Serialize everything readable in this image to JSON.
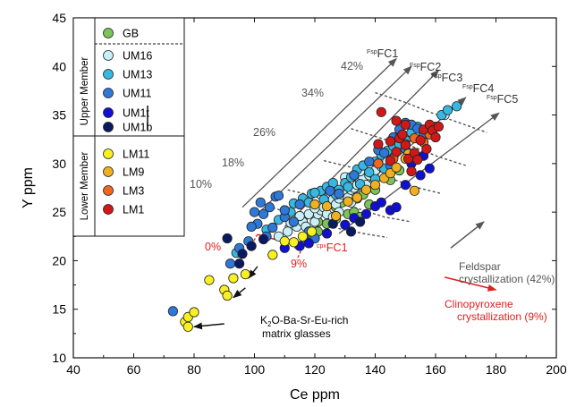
{
  "chart_data": {
    "type": "scatter",
    "xlabel": "Ce ppm",
    "ylabel": "Y ppm",
    "xlim": [
      40,
      200
    ],
    "ylim": [
      10,
      45
    ],
    "xticks": [
      "40",
      "60",
      "80",
      "100",
      "120",
      "140",
      "160",
      "180",
      "200"
    ],
    "yticks": [
      "10",
      "15",
      "20",
      "25",
      "30",
      "35",
      "40",
      "45"
    ],
    "grid": false,
    "legend": {
      "placement": "top-left",
      "group_upper": "Upper Member",
      "group_lower": "Lower Member",
      "entries": [
        {
          "label": "GB",
          "color": "#7cc45a"
        },
        {
          "label": "UM16",
          "color": "#c8f0f8"
        },
        {
          "label": "UM13",
          "color": "#38b8e0"
        },
        {
          "label": "UM11",
          "color": "#2e78d8"
        },
        {
          "label": "UM1t",
          "color": "#1010d0"
        },
        {
          "label": "UM1b",
          "color": "#0a1a60"
        },
        {
          "label": "LM11",
          "color": "#f8f020"
        },
        {
          "label": "LM9",
          "color": "#f0b020"
        },
        {
          "label": "LM3",
          "color": "#f06820"
        },
        {
          "label": "LM1",
          "color": "#d01818"
        }
      ]
    },
    "fsp_vectors": {
      "color": "#555555",
      "labels": [
        "FspFC1",
        "FspFC2",
        "FspFC3",
        "FspFC4",
        "FspFC5"
      ],
      "starts": [
        [
          96,
          25.5
        ],
        [
          101,
          24.8
        ],
        [
          110,
          23.5
        ],
        [
          119,
          23.0
        ],
        [
          128,
          22.8
        ]
      ],
      "ends": [
        [
          147,
          40.8
        ],
        [
          152,
          40.0
        ],
        [
          161,
          39.6
        ],
        [
          170,
          36.8
        ],
        [
          181,
          35.2
        ]
      ],
      "percent_labels": [
        "10%",
        "18%",
        "26%",
        "34%",
        "42%"
      ],
      "percent_lines": [
        [
          [
            103,
            25.8
          ],
          [
            120,
            24.0
          ],
          [
            128,
            23.3
          ],
          [
            136,
            22.8
          ],
          [
            144,
            22.4
          ]
        ],
        [
          [
            111,
            27.3
          ],
          [
            126,
            26.2
          ],
          [
            135,
            25.3
          ],
          [
            143,
            24.5
          ],
          [
            152,
            24.0
          ]
        ],
        [
          [
            123,
            30.3
          ],
          [
            135,
            29.4
          ],
          [
            144,
            28.6
          ],
          [
            153,
            27.6
          ],
          [
            162,
            26.9
          ]
        ],
        [
          [
            132,
            33.6
          ],
          [
            143,
            32.5
          ],
          [
            152,
            31.8
          ],
          [
            161,
            30.7
          ],
          [
            170,
            29.8
          ]
        ],
        [
          [
            140,
            37.3
          ],
          [
            150,
            36.3
          ],
          [
            158,
            35.3
          ],
          [
            167,
            34.3
          ],
          [
            177,
            33.2
          ]
        ]
      ]
    },
    "cpx_vector": {
      "color": "#e02020",
      "label": "cpxFC1",
      "start": [
        101,
        22.7
      ],
      "end": [
        116,
        21.4
      ],
      "pct_start_label": "0%",
      "pct_end_label": "9%"
    },
    "annotations": {
      "matrix_text_prefix": "K",
      "matrix_text_sub": "2",
      "matrix_text_suffix": "O-Ba-Sr-Eu-rich",
      "matrix_text_line2": "matrix glasses",
      "feldspar_line1": "Feldspar",
      "feldspar_line2": "crystallization (42%)",
      "feldspar_arrow": [
        [
          165,
          21.3
        ],
        [
          176,
          24.0
        ]
      ],
      "cpx_line1": "Clinopyroxene",
      "cpx_line2": "crystallization (9%)",
      "cpx_arrow": [
        [
          163,
          18.3
        ],
        [
          180,
          17.0
        ]
      ],
      "matrix_arrows": [
        [
          [
            90,
            13.5
          ],
          [
            80,
            13.2
          ]
        ],
        [
          [
            97,
            17.2
          ],
          [
            93,
            16.2
          ]
        ],
        [
          [
            101,
            19.4
          ],
          [
            98,
            18.2
          ]
        ]
      ]
    },
    "series": [
      {
        "name": "GB",
        "color": "#7cc45a",
        "points": [
          [
            118,
            22.5
          ],
          [
            121,
            23.0
          ],
          [
            124,
            23.8
          ],
          [
            127,
            24.3
          ],
          [
            131,
            24.8
          ],
          [
            133,
            25.0
          ],
          [
            135,
            24.5
          ],
          [
            138,
            25.8
          ],
          [
            121,
            24.0
          ],
          [
            127,
            25.5
          ],
          [
            134,
            26.4
          ],
          [
            140,
            27.3
          ],
          [
            145,
            28.3
          ],
          [
            148,
            29.3
          ],
          [
            129,
            26.0
          ],
          [
            136,
            26.8
          ]
        ]
      },
      {
        "name": "UM16",
        "color": "#c8f0f8",
        "points": [
          [
            108,
            22.5
          ],
          [
            111,
            23.0
          ],
          [
            114,
            23.5
          ],
          [
            116,
            24.0
          ],
          [
            117,
            23.5
          ],
          [
            118,
            23.0
          ],
          [
            120,
            24.0
          ],
          [
            121,
            24.8
          ],
          [
            122,
            25.2
          ],
          [
            123,
            25.5
          ],
          [
            124,
            24.8
          ],
          [
            125,
            25.9
          ],
          [
            126,
            26.3
          ],
          [
            127,
            25.8
          ],
          [
            128,
            26.4
          ],
          [
            129,
            26.8
          ],
          [
            130,
            27.0
          ],
          [
            131,
            26.5
          ],
          [
            132,
            27.3
          ],
          [
            133,
            27.5
          ],
          [
            134,
            27.8
          ],
          [
            135,
            28.2
          ],
          [
            136,
            28.5
          ],
          [
            137,
            27.8
          ],
          [
            138,
            28.8
          ],
          [
            139,
            29.0
          ],
          [
            140,
            29.3
          ],
          [
            142,
            29.7
          ],
          [
            144,
            30.2
          ],
          [
            146,
            30.7
          ],
          [
            118,
            24.8
          ],
          [
            120,
            25.4
          ],
          [
            112,
            23.9
          ],
          [
            115,
            24.6
          ],
          [
            118,
            26.0
          ],
          [
            122,
            26.8
          ],
          [
            125,
            27.2
          ],
          [
            130,
            28.6
          ],
          [
            135,
            29.2
          ],
          [
            128,
            25.0
          ],
          [
            126,
            24.5
          ],
          [
            132,
            26.0
          ],
          [
            163,
            35.0
          ]
        ]
      },
      {
        "name": "UM13",
        "color": "#38b8e0",
        "points": [
          [
            94,
            20.8
          ],
          [
            104,
            23.2
          ],
          [
            108,
            24.2
          ],
          [
            112,
            25.0
          ],
          [
            113,
            25.9
          ],
          [
            116,
            26.4
          ],
          [
            118,
            26.0
          ],
          [
            119,
            26.9
          ],
          [
            122,
            27.2
          ],
          [
            124,
            27.6
          ],
          [
            126,
            28.0
          ],
          [
            128,
            27.3
          ],
          [
            130,
            28.0
          ],
          [
            132,
            28.6
          ],
          [
            134,
            29.4
          ],
          [
            136,
            29.8
          ],
          [
            138,
            29.1
          ],
          [
            140,
            30.2
          ],
          [
            142,
            30.9
          ],
          [
            144,
            31.3
          ],
          [
            146,
            31.8
          ],
          [
            148,
            32.0
          ],
          [
            150,
            32.4
          ],
          [
            152,
            33.2
          ],
          [
            154,
            33.8
          ],
          [
            140,
            28.4
          ],
          [
            143,
            29.5
          ],
          [
            120,
            27.0
          ],
          [
            123,
            26.3
          ],
          [
            127,
            26.8
          ],
          [
            131,
            27.6
          ],
          [
            135,
            27.9
          ],
          [
            162,
            35.0
          ],
          [
            164,
            35.5
          ],
          [
            167,
            35.9
          ],
          [
            158,
            33.0
          ],
          [
            152,
            31.0
          ],
          [
            146,
            29.5
          ]
        ]
      },
      {
        "name": "UM11",
        "color": "#2e78d8",
        "points": [
          [
            73,
            14.8
          ],
          [
            92,
            19.7
          ],
          [
            95,
            21.3
          ],
          [
            98,
            22.0
          ],
          [
            101,
            23.8
          ],
          [
            103,
            24.8
          ],
          [
            105,
            25.5
          ],
          [
            107,
            26.6
          ],
          [
            104,
            22.5
          ],
          [
            106,
            23.4
          ],
          [
            110,
            24.5
          ],
          [
            113,
            24.0
          ],
          [
            117,
            22.0
          ],
          [
            118,
            23.0
          ],
          [
            120,
            22.3
          ],
          [
            115,
            25.8
          ],
          [
            108,
            26.7
          ],
          [
            110,
            25.2
          ],
          [
            125,
            27.2
          ],
          [
            128,
            26.9
          ],
          [
            133,
            28.8
          ],
          [
            138,
            30.2
          ],
          [
            141,
            31.4
          ],
          [
            143,
            31.1
          ],
          [
            146,
            32.7
          ],
          [
            148,
            33.5
          ],
          [
            150,
            34.2
          ],
          [
            152,
            34.0
          ],
          [
            154,
            33.6
          ],
          [
            156,
            33.0
          ],
          [
            158,
            33.2
          ],
          [
            160,
            33.8
          ],
          [
            150,
            31.5
          ],
          [
            145,
            29.8
          ],
          [
            100,
            25.0
          ],
          [
            99,
            23.5
          ],
          [
            102,
            26.0
          ]
        ]
      },
      {
        "name": "UM1t",
        "color": "#1010d0",
        "points": [
          [
            110,
            21.3
          ],
          [
            115,
            21.5
          ],
          [
            118,
            21.8
          ],
          [
            124,
            22.8
          ],
          [
            130,
            23.7
          ],
          [
            133,
            24.4
          ],
          [
            137,
            24.8
          ],
          [
            140,
            25.6
          ],
          [
            145,
            25.2
          ],
          [
            147,
            25.5
          ],
          [
            142,
            26.0
          ],
          [
            150,
            27.8
          ],
          [
            155,
            28.8
          ],
          [
            158,
            29.5
          ],
          [
            152,
            30.0
          ],
          [
            156,
            30.8
          ]
        ]
      },
      {
        "name": "UM1b",
        "color": "#0a1a60",
        "points": [
          [
            91,
            22.3
          ],
          [
            96,
            20.7
          ],
          [
            95,
            19.7
          ],
          [
            99,
            21.5
          ],
          [
            103,
            22.2
          ],
          [
            126,
            23.8
          ],
          [
            132,
            23.0
          ],
          [
            135,
            24.0
          ]
        ]
      },
      {
        "name": "LM11",
        "color": "#f8f020",
        "points": [
          [
            77,
            13.7
          ],
          [
            78,
            14.2
          ],
          [
            78,
            13.2
          ],
          [
            80,
            14.7
          ],
          [
            85,
            18.0
          ],
          [
            90,
            17.0
          ],
          [
            91,
            16.4
          ],
          [
            93,
            18.2
          ],
          [
            97,
            18.6
          ],
          [
            106,
            20.6
          ],
          [
            110,
            22.0
          ],
          [
            113,
            21.9
          ],
          [
            116,
            22.5
          ],
          [
            119,
            23.0
          ]
        ]
      },
      {
        "name": "LM9",
        "color": "#f0b020",
        "points": [
          [
            120,
            25.8
          ],
          [
            124,
            25.6
          ],
          [
            127,
            24.6
          ],
          [
            131,
            26.1
          ],
          [
            134,
            26.5
          ],
          [
            137,
            27.3
          ],
          [
            140,
            27.8
          ],
          [
            143,
            28.5
          ],
          [
            145,
            29.0
          ],
          [
            147,
            29.6
          ],
          [
            151,
            31.0
          ],
          [
            153,
            27.2
          ],
          [
            150,
            30.5
          ]
        ]
      },
      {
        "name": "LM3",
        "color": "#f06820",
        "points": [
          [
            141,
            30.0
          ],
          [
            146,
            30.5
          ],
          [
            150,
            32.0
          ],
          [
            153,
            32.6
          ],
          [
            156,
            32.2
          ],
          [
            158,
            33.0
          ]
        ]
      },
      {
        "name": "LM1",
        "color": "#d01818",
        "points": [
          [
            142,
            35.3
          ],
          [
            141,
            32.0
          ],
          [
            145,
            30.3
          ],
          [
            147,
            31.2
          ],
          [
            148,
            32.6
          ],
          [
            149,
            33.0
          ],
          [
            150,
            31.9
          ],
          [
            151,
            30.5
          ],
          [
            152,
            29.2
          ],
          [
            153,
            31.1
          ],
          [
            154,
            30.4
          ],
          [
            155,
            32.4
          ],
          [
            156,
            33.5
          ],
          [
            157,
            31.5
          ],
          [
            158,
            34.0
          ],
          [
            159,
            33.4
          ],
          [
            160,
            32.7
          ],
          [
            161,
            33.8
          ],
          [
            150,
            34.0
          ],
          [
            145,
            32.3
          ],
          [
            147,
            34.4
          ]
        ]
      }
    ]
  }
}
